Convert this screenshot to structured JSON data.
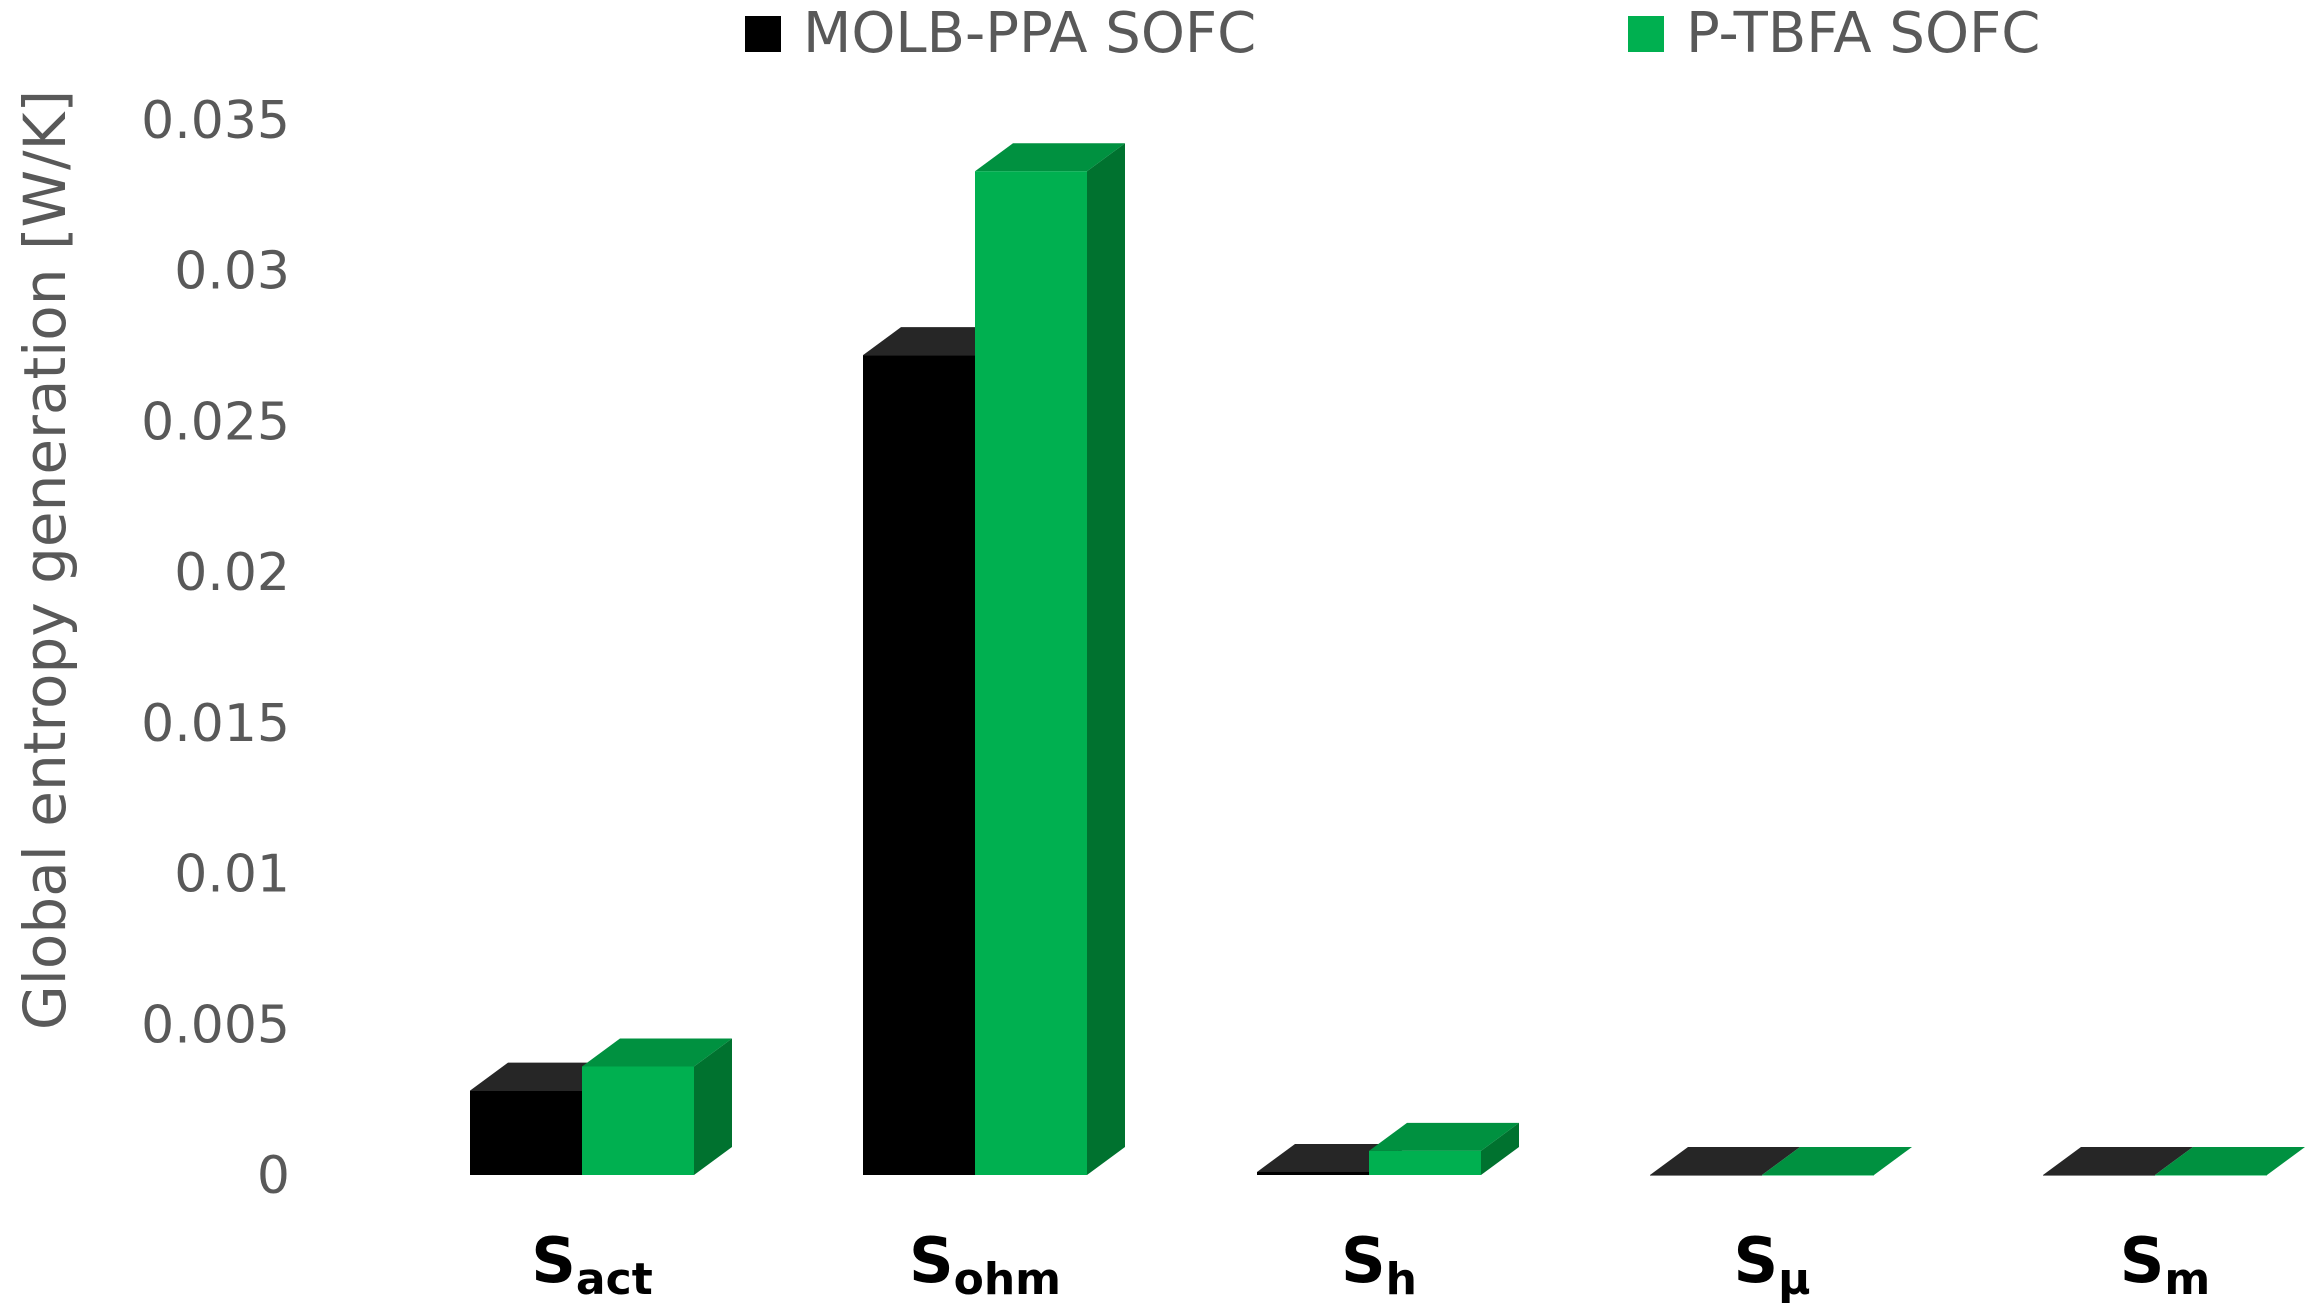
{
  "chart_data": {
    "type": "bar",
    "title": "",
    "ylabel": "Global entropy generation [W/K]",
    "xlabel": "",
    "ylim": [
      0,
      0.035
    ],
    "yticks": [
      "0",
      "0.005",
      "0.01",
      "0.015",
      "0.02",
      "0.025",
      "0.03",
      "0.035"
    ],
    "categories": [
      {
        "main": "S",
        "sub": "act"
      },
      {
        "main": "S",
        "sub": "ohm"
      },
      {
        "main": "S",
        "sub": "h"
      },
      {
        "main": "S",
        "sub": "μ"
      },
      {
        "main": "S",
        "sub": "m"
      }
    ],
    "series": [
      {
        "name": "MOLB-PPA SOFC",
        "color": "#000000",
        "side_color": "#1a1a1a",
        "top_color": "#262626",
        "values": [
          0.0028,
          0.0272,
          0.0001,
          0.0,
          0.0
        ]
      },
      {
        "name": "P-TBFA SOFC",
        "color": "#00b050",
        "side_color": "#00722f",
        "top_color": "#009140",
        "values": [
          0.0036,
          0.0333,
          0.0008,
          0.0,
          0.0
        ]
      }
    ],
    "legend_position": "top",
    "grid": false,
    "style": "3d-column"
  }
}
